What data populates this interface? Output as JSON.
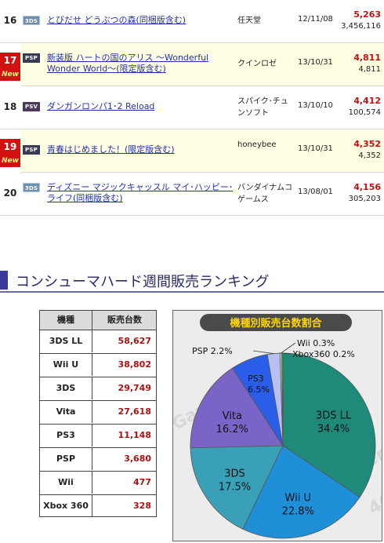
{
  "software_ranking": [
    {
      "rank": "16",
      "is_new": false,
      "platform": "3DS",
      "title": "とびだせ どうぶつの森(同梱版含む)",
      "maker": "任天堂",
      "date": "12/11/08",
      "weekly": "5,263",
      "total": "3,456,116"
    },
    {
      "rank": "17",
      "is_new": true,
      "platform": "PSP",
      "title": "新装版 ハートの国のアリス ～Wonderful Wonder World～(限定版含む)",
      "maker": "クインロゼ",
      "date": "13/10/31",
      "weekly": "4,811",
      "total": "4,811"
    },
    {
      "rank": "18",
      "is_new": false,
      "platform": "PSV",
      "title": "ダンガンロンパ1･2 Reload",
      "maker": "スパイク･チュンソフト",
      "date": "13/10/10",
      "weekly": "4,412",
      "total": "100,574"
    },
    {
      "rank": "19",
      "is_new": true,
      "platform": "PSP",
      "title": "青春はじめました！(限定版含む)",
      "maker": "honeybee",
      "date": "13/10/31",
      "weekly": "4,352",
      "total": "4,352"
    },
    {
      "rank": "20",
      "is_new": false,
      "platform": "3DS",
      "title": "ディズニー マジックキャッスル マイ･ハッピー･ライフ(同梱版含む)",
      "maker": "バンダイナムコゲームス",
      "date": "13/08/01",
      "weekly": "4,156",
      "total": "305,203"
    }
  ],
  "new_label": "New",
  "hardware_section": {
    "title": "コンシューマハード週間販売ランキング"
  },
  "hardware_table": {
    "headers": [
      "機種",
      "販売台数"
    ],
    "rows": [
      {
        "name": "3DS LL",
        "units": "58,627"
      },
      {
        "name": "Wii U",
        "units": "38,802"
      },
      {
        "name": "3DS",
        "units": "29,749"
      },
      {
        "name": "Vita",
        "units": "27,618"
      },
      {
        "name": "PS3",
        "units": "11,148"
      },
      {
        "name": "PSP",
        "units": "3,680"
      },
      {
        "name": "Wii",
        "units": "477"
      },
      {
        "name": "Xbox 360",
        "units": "328"
      }
    ]
  },
  "chart_data": {
    "type": "pie",
    "title": "機種別販売台数割合",
    "slices": [
      {
        "label": "3DS LL",
        "value": 34.4,
        "display": "34.4%",
        "color": "#1f8a7a"
      },
      {
        "label": "Wii U",
        "value": 22.8,
        "display": "22.8%",
        "color": "#1f8fd8"
      },
      {
        "label": "3DS",
        "value": 17.5,
        "display": "17.5%",
        "color": "#3aa0b8"
      },
      {
        "label": "Vita",
        "value": 16.2,
        "display": "16.2%",
        "color": "#7a64c8"
      },
      {
        "label": "PS3",
        "value": 6.5,
        "display": "6.5%",
        "color": "#2a5ee8"
      },
      {
        "label": "PSP",
        "value": 2.2,
        "display": "2.2%",
        "color": "#b8c0f0"
      },
      {
        "label": "Wii",
        "value": 0.3,
        "display": "0.3%",
        "color": "#dcdcdc"
      },
      {
        "label": "Xbox360",
        "value": 0.2,
        "display": "0.2%",
        "color": "#39c439"
      }
    ],
    "watermark": "4Gamer.net"
  }
}
